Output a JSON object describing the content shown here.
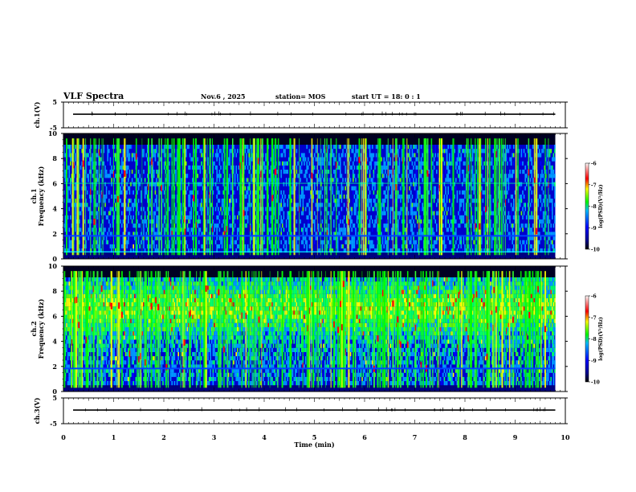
{
  "header": {
    "title": "VLF Spectra",
    "date": "Nov.6 , 2025",
    "station": "station= MOS",
    "start_ut": "start UT = 18: 0 : 1"
  },
  "chart_data": [
    {
      "type": "line",
      "name": "ch1-waveform",
      "ylabel": "ch.1(V)",
      "ylim": [
        -5,
        5
      ],
      "yticks": [
        5,
        -5
      ],
      "xlim": [
        0,
        10
      ],
      "baseline": 0
    },
    {
      "type": "heatmap",
      "name": "ch1-spectrogram",
      "ylabel": "ch.1 Frequency (kHz)",
      "ylim": [
        0,
        10
      ],
      "yticks": [
        0,
        2,
        4,
        6,
        8,
        10
      ],
      "xlim": [
        0,
        10
      ],
      "data_end_min": 9.8,
      "colorbar": {
        "label": "log(PSD)(V²/Hz)",
        "ticks": [
          -6,
          -7,
          -8,
          -9,
          -10
        ],
        "range": [
          -10,
          -6
        ]
      }
    },
    {
      "type": "heatmap",
      "name": "ch2-spectrogram",
      "ylabel": "ch.2 Frequency (kHz)",
      "ylim": [
        0,
        10
      ],
      "yticks": [
        0,
        2,
        4,
        6,
        8,
        10
      ],
      "xlim": [
        0,
        10
      ],
      "data_end_min": 9.8,
      "colorbar": {
        "label": "log(PSD)(V²/Hz)",
        "ticks": [
          -6,
          -7,
          -8,
          -9,
          -10
        ],
        "range": [
          -10,
          -6
        ]
      }
    },
    {
      "type": "line",
      "name": "ch3-waveform",
      "ylabel": "ch.3(V)",
      "ylim": [
        -5,
        5
      ],
      "yticks": [
        5,
        -5
      ],
      "xlim": [
        0,
        10
      ],
      "baseline": 0
    }
  ],
  "x_axis": {
    "label": "Time (min)",
    "ticks": [
      0,
      1,
      2,
      3,
      4,
      5,
      6,
      7,
      8,
      9,
      10
    ]
  },
  "colors": {
    "colormap": [
      "#000000",
      "#00008b",
      "#0000ff",
      "#00bfff",
      "#00ff00",
      "#ffff00",
      "#ff0000",
      "#ffffff"
    ]
  }
}
